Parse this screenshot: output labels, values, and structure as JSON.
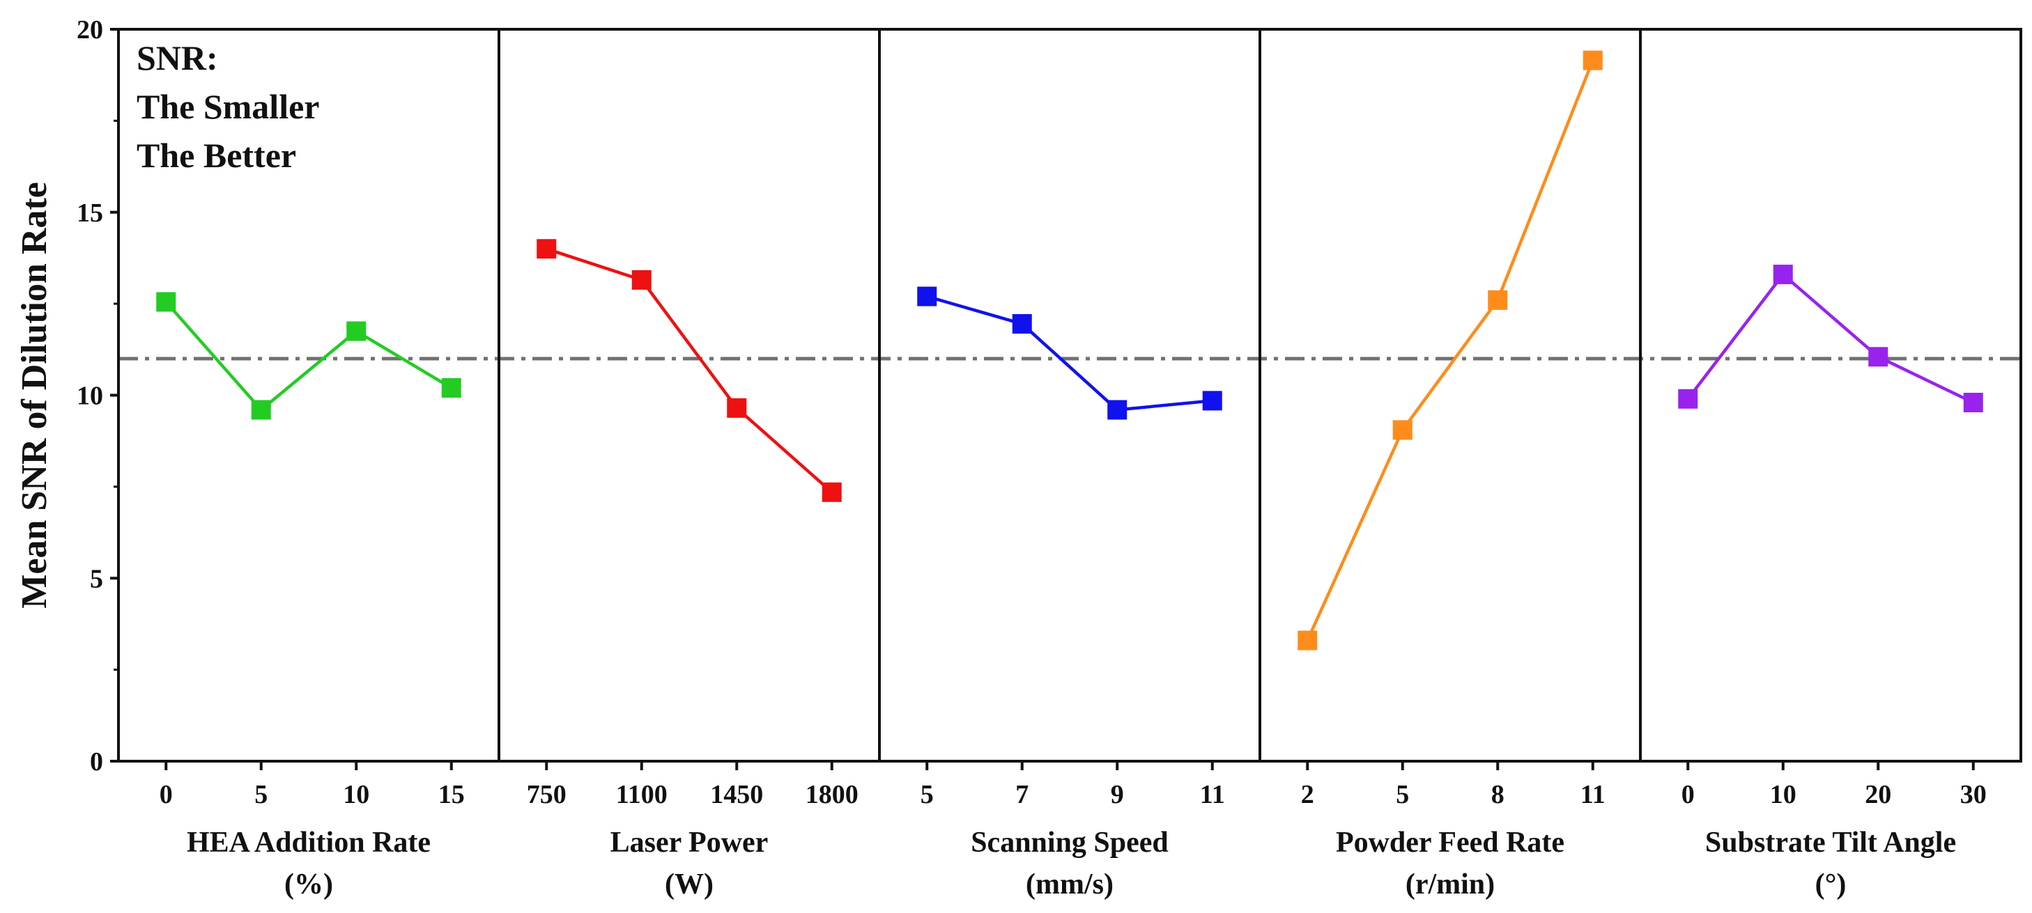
{
  "chart_data": {
    "type": "line",
    "ylabel": "Mean SNR of Dilution Rate",
    "ylim": [
      0,
      20
    ],
    "yticks": [
      "0",
      "5",
      "10",
      "15",
      "20"
    ],
    "reference_line": {
      "value": 11.0,
      "style": "dash-dot",
      "color": "#707070"
    },
    "annotation": [
      "SNR:",
      "The Smaller",
      "The Better"
    ],
    "panels": [
      {
        "xlabel_line1": "HEA Addition Rate",
        "xlabel_line2": "(%)",
        "categories": [
          "0",
          "5",
          "10",
          "15"
        ],
        "values": [
          12.55,
          9.6,
          11.75,
          10.2
        ],
        "color": "#22cc22"
      },
      {
        "xlabel_line1": "Laser Power",
        "xlabel_line2": "(W)",
        "categories": [
          "750",
          "1100",
          "1450",
          "1800"
        ],
        "values": [
          14.0,
          13.15,
          9.65,
          7.35
        ],
        "color": "#ee1111"
      },
      {
        "xlabel_line1": "Scanning Speed",
        "xlabel_line2": "(mm/s)",
        "categories": [
          "5",
          "7",
          "9",
          "11"
        ],
        "values": [
          12.7,
          11.95,
          9.6,
          9.85
        ],
        "color": "#1111ee"
      },
      {
        "xlabel_line1": "Powder Feed Rate",
        "xlabel_line2": "(r/min)",
        "categories": [
          "2",
          "5",
          "8",
          "11"
        ],
        "values": [
          3.3,
          9.05,
          12.6,
          19.15
        ],
        "color": "#ff8c1a"
      },
      {
        "xlabel_line1": "Substrate Tilt Angle",
        "xlabel_line2": "(°)",
        "categories": [
          "0",
          "10",
          "20",
          "30"
        ],
        "values": [
          9.9,
          13.3,
          11.05,
          9.8
        ],
        "color": "#9922ee"
      }
    ]
  }
}
